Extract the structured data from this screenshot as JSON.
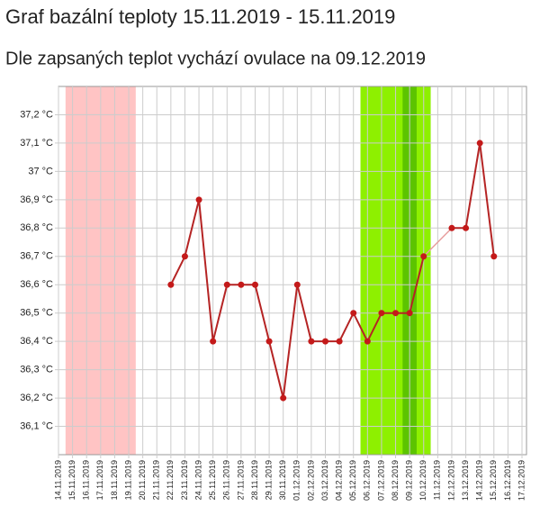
{
  "chart_data": {
    "type": "line",
    "title": "Graf bazální teploty 15.11.2019 - 15.11.2019",
    "subtitle": "Dle zapsaných teplot vychází ovulace na 09.12.2019",
    "categories": [
      "14.11.2019",
      "15.11.2019",
      "16.11.2019",
      "17.11.2019",
      "18.11.2019",
      "19.11.2019",
      "20.11.2019",
      "21.11.2019",
      "22.11.2019",
      "23.11.2019",
      "24.11.2019",
      "25.11.2019",
      "26.11.2019",
      "27.11.2019",
      "28.11.2019",
      "29.11.2019",
      "30.11.2019",
      "01.12.2019",
      "02.12.2019",
      "03.12.2019",
      "04.12.2019",
      "05.12.2019",
      "06.12.2019",
      "07.12.2019",
      "08.12.2019",
      "09.12.2019",
      "10.12.2019",
      "11.12.2019",
      "12.12.2019",
      "13.12.2019",
      "14.12.2019",
      "15.12.2019",
      "16.12.2019",
      "17.12.2019"
    ],
    "series": [
      {
        "color": "#b52424",
        "values": [
          null,
          null,
          null,
          null,
          null,
          null,
          null,
          null,
          36.6,
          36.7,
          36.9,
          36.4,
          36.6,
          36.6,
          36.6,
          36.4,
          36.2,
          36.6,
          36.4,
          36.4,
          36.4,
          36.5,
          36.4,
          36.5,
          36.5,
          36.5,
          36.7,
          null,
          36.8,
          36.8,
          37.1,
          36.7,
          null,
          null
        ]
      }
    ],
    "ylim": [
      36.0,
      37.3
    ],
    "yticks": [
      {
        "value": 36.1,
        "label": "36,1 °C"
      },
      {
        "value": 36.2,
        "label": "36,2 °C"
      },
      {
        "value": 36.3,
        "label": "36,3 °C"
      },
      {
        "value": 36.4,
        "label": "36,4 °C"
      },
      {
        "value": 36.5,
        "label": "36,5 °C"
      },
      {
        "value": 36.6,
        "label": "36,6 °C"
      },
      {
        "value": 36.7,
        "label": "36,7 °C"
      },
      {
        "value": 36.8,
        "label": "36,8 °C"
      },
      {
        "value": 36.9,
        "label": "36,9 °C"
      },
      {
        "value": 37,
        "label": "37 °C"
      },
      {
        "value": 37.1,
        "label": "37,1 °C"
      },
      {
        "value": 37.2,
        "label": "37,2 °C"
      }
    ],
    "grid": true
  }
}
